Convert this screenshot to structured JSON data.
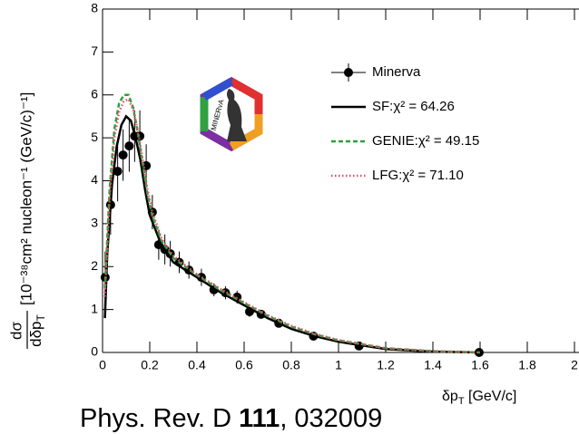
{
  "chart_data": {
    "type": "line",
    "y_label_numerator": "dσ",
    "y_label_denominator": "dδp",
    "y_label_denominator_sub": "T",
    "y_label_units": "[10⁻³⁸cm² nucleon⁻¹ (GeV/c)⁻¹]",
    "x_label_main": "δp",
    "x_label_sub": "T",
    "x_label_unit": " [GeV/c]",
    "logo_text": "MINERvA",
    "citation": {
      "prefix": "Phys. Rev. D ",
      "volume": "111",
      "suffix": ", 032009"
    },
    "xlim": [
      0,
      2
    ],
    "ylim": [
      0,
      8
    ],
    "xticks": [
      0,
      0.2,
      0.4,
      0.6,
      0.8,
      1,
      1.2,
      1.4,
      1.6,
      1.8,
      2
    ],
    "yticks": [
      0,
      1,
      2,
      3,
      4,
      5,
      6,
      7,
      8
    ],
    "legend": "upper right",
    "series": [
      {
        "name": "Minerva",
        "style": "points",
        "color": "#000000",
        "x": [
          0.011,
          0.034,
          0.064,
          0.087,
          0.113,
          0.136,
          0.158,
          0.185,
          0.211,
          0.238,
          0.264,
          0.287,
          0.325,
          0.366,
          0.419,
          0.472,
          0.521,
          0.57,
          0.623,
          0.672,
          0.747,
          0.894,
          1.087,
          1.596
        ],
        "values": [
          1.75,
          3.44,
          4.22,
          4.6,
          4.81,
          5.04,
          5.04,
          4.35,
          3.27,
          2.51,
          2.4,
          2.3,
          2.1,
          1.92,
          1.75,
          1.46,
          1.39,
          1.29,
          0.95,
          0.89,
          0.68,
          0.38,
          0.15,
          0.0
        ],
        "errors": [
          0.6,
          0.7,
          0.7,
          0.6,
          0.6,
          0.6,
          0.6,
          0.5,
          0.4,
          0.35,
          0.35,
          0.3,
          0.25,
          0.2,
          0.2,
          0.15,
          0.15,
          0.15,
          0.12,
          0.1,
          0.08,
          0.06,
          0.04,
          0.02
        ]
      },
      {
        "name": "SF:χ² = 64.26",
        "style": "solid",
        "color": "#000000",
        "x": [
          0.01,
          0.02,
          0.04,
          0.06,
          0.08,
          0.1,
          0.12,
          0.14,
          0.16,
          0.18,
          0.2,
          0.25,
          0.3,
          0.4,
          0.5,
          0.6,
          0.7,
          0.8,
          0.9,
          1.0,
          1.2,
          1.4,
          1.6
        ],
        "values": [
          0.8,
          2.3,
          3.9,
          4.8,
          5.3,
          5.5,
          5.4,
          5.0,
          4.5,
          3.8,
          3.2,
          2.5,
          2.1,
          1.75,
          1.4,
          1.1,
          0.8,
          0.55,
          0.38,
          0.25,
          0.08,
          0.02,
          0.0
        ]
      },
      {
        "name": "GENIE:χ² = 49.15",
        "style": "dashed",
        "color": "#2e9e3a",
        "x": [
          0.01,
          0.03,
          0.05,
          0.07,
          0.09,
          0.11,
          0.13,
          0.15,
          0.17,
          0.19,
          0.21,
          0.25,
          0.3,
          0.4,
          0.5,
          0.6,
          0.7,
          0.8,
          0.9,
          1.0,
          1.2,
          1.4,
          1.6
        ],
        "values": [
          1.5,
          3.8,
          5.2,
          5.8,
          6.0,
          6.0,
          5.7,
          5.1,
          4.4,
          3.7,
          3.2,
          2.6,
          2.2,
          1.8,
          1.45,
          1.15,
          0.85,
          0.6,
          0.42,
          0.28,
          0.1,
          0.03,
          0.0
        ]
      },
      {
        "name": "LFG:χ² = 71.10",
        "style": "dotted",
        "color": "#e0506a",
        "x": [
          0.01,
          0.03,
          0.05,
          0.07,
          0.09,
          0.11,
          0.13,
          0.15,
          0.17,
          0.19,
          0.21,
          0.25,
          0.3,
          0.4,
          0.5,
          0.6,
          0.7,
          0.8,
          0.9,
          1.0,
          1.2,
          1.4,
          1.6
        ],
        "values": [
          1.3,
          3.6,
          5.0,
          5.6,
          5.85,
          5.9,
          5.65,
          5.15,
          4.5,
          3.8,
          3.3,
          2.65,
          2.25,
          1.82,
          1.48,
          1.17,
          0.87,
          0.62,
          0.43,
          0.29,
          0.1,
          0.03,
          0.0
        ]
      }
    ]
  }
}
